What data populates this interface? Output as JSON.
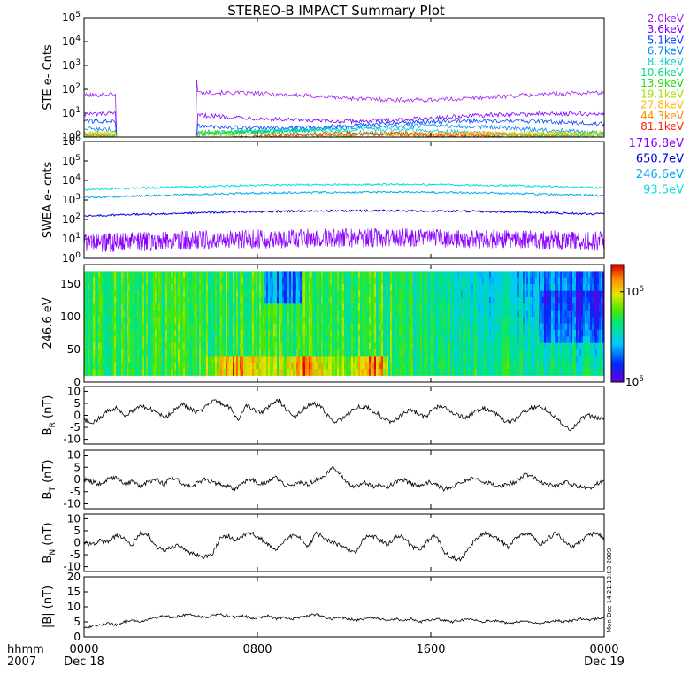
{
  "title": "STEREO-B IMPACT Summary Plot",
  "colors": {
    "ste": [
      "#a020f0",
      "#7a00ff",
      "#0044ff",
      "#0088ff",
      "#00cccc",
      "#00dd88",
      "#22dd00",
      "#aadd00",
      "#ffbb00",
      "#ff8800",
      "#ff2200"
    ],
    "swea": [
      "#8a00ff",
      "#0000dd",
      "#00aaee",
      "#00dddd"
    ]
  },
  "chart_data": [
    {
      "type": "line",
      "id": "ste",
      "ylabel": "STE e- Cnts",
      "yscale": "log",
      "ylim": [
        1,
        100000
      ],
      "yticks": [
        "10^0",
        "10^1",
        "10^2",
        "10^3",
        "10^4",
        "10^5"
      ],
      "data_gap": {
        "start_hour": 1.5,
        "end_hour": 5.2
      },
      "legend_placement": "right",
      "series": [
        {
          "name": "2.0keV",
          "level": 55
        },
        {
          "name": "3.6keV",
          "level": 7
        },
        {
          "name": "5.1keV",
          "level": 3.6
        },
        {
          "name": "6.7keV",
          "level": 2.2
        },
        {
          "name": "8.3keV",
          "level": 1.6
        },
        {
          "name": "10.6keV",
          "level": 1.35
        },
        {
          "name": "13.9keV",
          "level": 1.2
        },
        {
          "name": "19.1keV",
          "level": 1.12
        },
        {
          "name": "27.8keV",
          "level": 1.08
        },
        {
          "name": "44.3keV",
          "level": 1.05
        },
        {
          "name": "81.1keV",
          "level": 1.03
        }
      ]
    },
    {
      "type": "line",
      "id": "swea",
      "ylabel": "SWEA e- cnts",
      "yscale": "log",
      "ylim": [
        1,
        1000000
      ],
      "yticks": [
        "10^0",
        "10^1",
        "10^2",
        "10^3",
        "10^4",
        "10^5",
        "10^6"
      ],
      "legend_placement": "right",
      "series": [
        {
          "name": "1716.8eV",
          "level": 8
        },
        {
          "name": "650.7eV",
          "level": 200
        },
        {
          "name": "246.6eV",
          "level": 1800
        },
        {
          "name": "93.5eV",
          "level": 4500
        }
      ]
    },
    {
      "type": "heatmap",
      "id": "pad",
      "ylabel": "246.6 eV",
      "ylim": [
        0,
        180
      ],
      "yticks": [
        "0",
        "50",
        "100",
        "150"
      ],
      "colorbar": {
        "ticks": [
          "10^5",
          "10^6"
        ],
        "range": [
          100000,
          2000000
        ]
      }
    },
    {
      "type": "line",
      "id": "br",
      "ylabel": "B",
      "ylabel_sub": "R",
      "ylabel_unit": " (nT)",
      "ylim": [
        -12,
        12
      ],
      "yticks": [
        "-10",
        "-5",
        "0",
        "5",
        "10"
      ],
      "series": [
        {
          "values": [
            -2,
            -3,
            -1,
            2,
            3,
            0,
            2,
            4,
            3,
            1,
            -1,
            2,
            5,
            3,
            1,
            4,
            6,
            5,
            3,
            -2,
            4,
            2,
            1,
            5,
            6,
            2,
            -1,
            3,
            5,
            4,
            0,
            -3,
            -1,
            2,
            4,
            3,
            1,
            -2,
            -3,
            0,
            2,
            1,
            -1,
            3,
            4,
            2,
            0,
            -1,
            1,
            3,
            2,
            0,
            -3,
            -2,
            1,
            3,
            4,
            2,
            -1,
            -4,
            -6,
            -2,
            0,
            -1,
            -2
          ]
        }
      ]
    },
    {
      "type": "line",
      "id": "bt",
      "ylabel": "B",
      "ylabel_sub": "T",
      "ylabel_unit": " (nT)",
      "ylim": [
        -12,
        12
      ],
      "yticks": [
        "-10",
        "-5",
        "0",
        "5",
        "10"
      ],
      "series": [
        {
          "values": [
            0,
            -1,
            -2,
            0,
            1,
            -2,
            -1,
            -3,
            -1,
            0,
            -2,
            1,
            -1,
            -3,
            -2,
            0,
            -1,
            -2,
            -3,
            -4,
            -1,
            0,
            -2,
            -1,
            1,
            -2,
            -3,
            -1,
            -2,
            0,
            1,
            5,
            2,
            -2,
            -3,
            -1,
            -3,
            -2,
            -3,
            -1,
            0,
            -2,
            -3,
            -1,
            -2,
            -4,
            -3,
            -1,
            0,
            1,
            -1,
            -2,
            -3,
            -2,
            -1,
            2,
            1,
            -1,
            -2,
            -3,
            -1,
            -2,
            -3,
            -4,
            -2,
            -1
          ]
        }
      ]
    },
    {
      "type": "line",
      "id": "bn",
      "ylabel": "B",
      "ylabel_sub": "N",
      "ylabel_unit": " (nT)",
      "ylim": [
        -12,
        12
      ],
      "yticks": [
        "-10",
        "-5",
        "0",
        "5",
        "10"
      ],
      "series": [
        {
          "values": [
            0,
            -1,
            1,
            0,
            3,
            2,
            -1,
            4,
            3,
            -2,
            -3,
            -2,
            -1,
            -4,
            -5,
            -6,
            -5,
            2,
            3,
            1,
            3,
            4,
            2,
            -1,
            -3,
            1,
            3,
            2,
            -2,
            4,
            2,
            0,
            -1,
            -3,
            -4,
            2,
            3,
            1,
            -1,
            3,
            2,
            -2,
            -3,
            1,
            3,
            -4,
            -6,
            -7,
            -3,
            2,
            4,
            3,
            1,
            -2,
            2,
            4,
            3,
            -1,
            2,
            4,
            1,
            -2,
            0,
            3,
            4,
            2
          ]
        }
      ]
    },
    {
      "type": "line",
      "id": "bmag",
      "ylabel": "|B| (nT)",
      "ylim": [
        0,
        20
      ],
      "yticks": [
        "0",
        "5",
        "10",
        "15",
        "20"
      ],
      "series": [
        {
          "values": [
            3,
            3.5,
            4,
            4.5,
            4,
            5,
            5.5,
            5,
            6,
            6.5,
            7,
            6.5,
            7,
            7.5,
            7,
            6.5,
            7,
            7.5,
            7,
            6.5,
            7,
            6,
            6.5,
            7,
            6,
            6.5,
            6,
            6.5,
            7,
            7.5,
            6.5,
            6,
            6.5,
            6,
            5.5,
            6,
            6.5,
            6,
            5.5,
            6,
            5.5,
            6,
            5,
            5.5,
            6,
            5.5,
            5,
            5.5,
            6,
            5.5,
            5,
            5.5,
            5,
            4.5,
            5,
            5.5,
            5,
            4.5,
            5,
            5.5,
            5,
            5.5,
            6,
            5.5,
            6,
            6.5
          ]
        }
      ]
    }
  ],
  "x_axis": {
    "corner_labels": [
      "hhmm",
      "2007"
    ],
    "ticks": [
      {
        "hour": 0,
        "label": "0000",
        "date": "Dec 18"
      },
      {
        "hour": 8,
        "label": "0800",
        "date": ""
      },
      {
        "hour": 16,
        "label": "1600",
        "date": ""
      },
      {
        "hour": 24,
        "label": "0000",
        "date": "Dec 19"
      }
    ],
    "range": [
      0,
      24
    ]
  },
  "timestamp": "Mon Dec 14 21:13:03 2009"
}
